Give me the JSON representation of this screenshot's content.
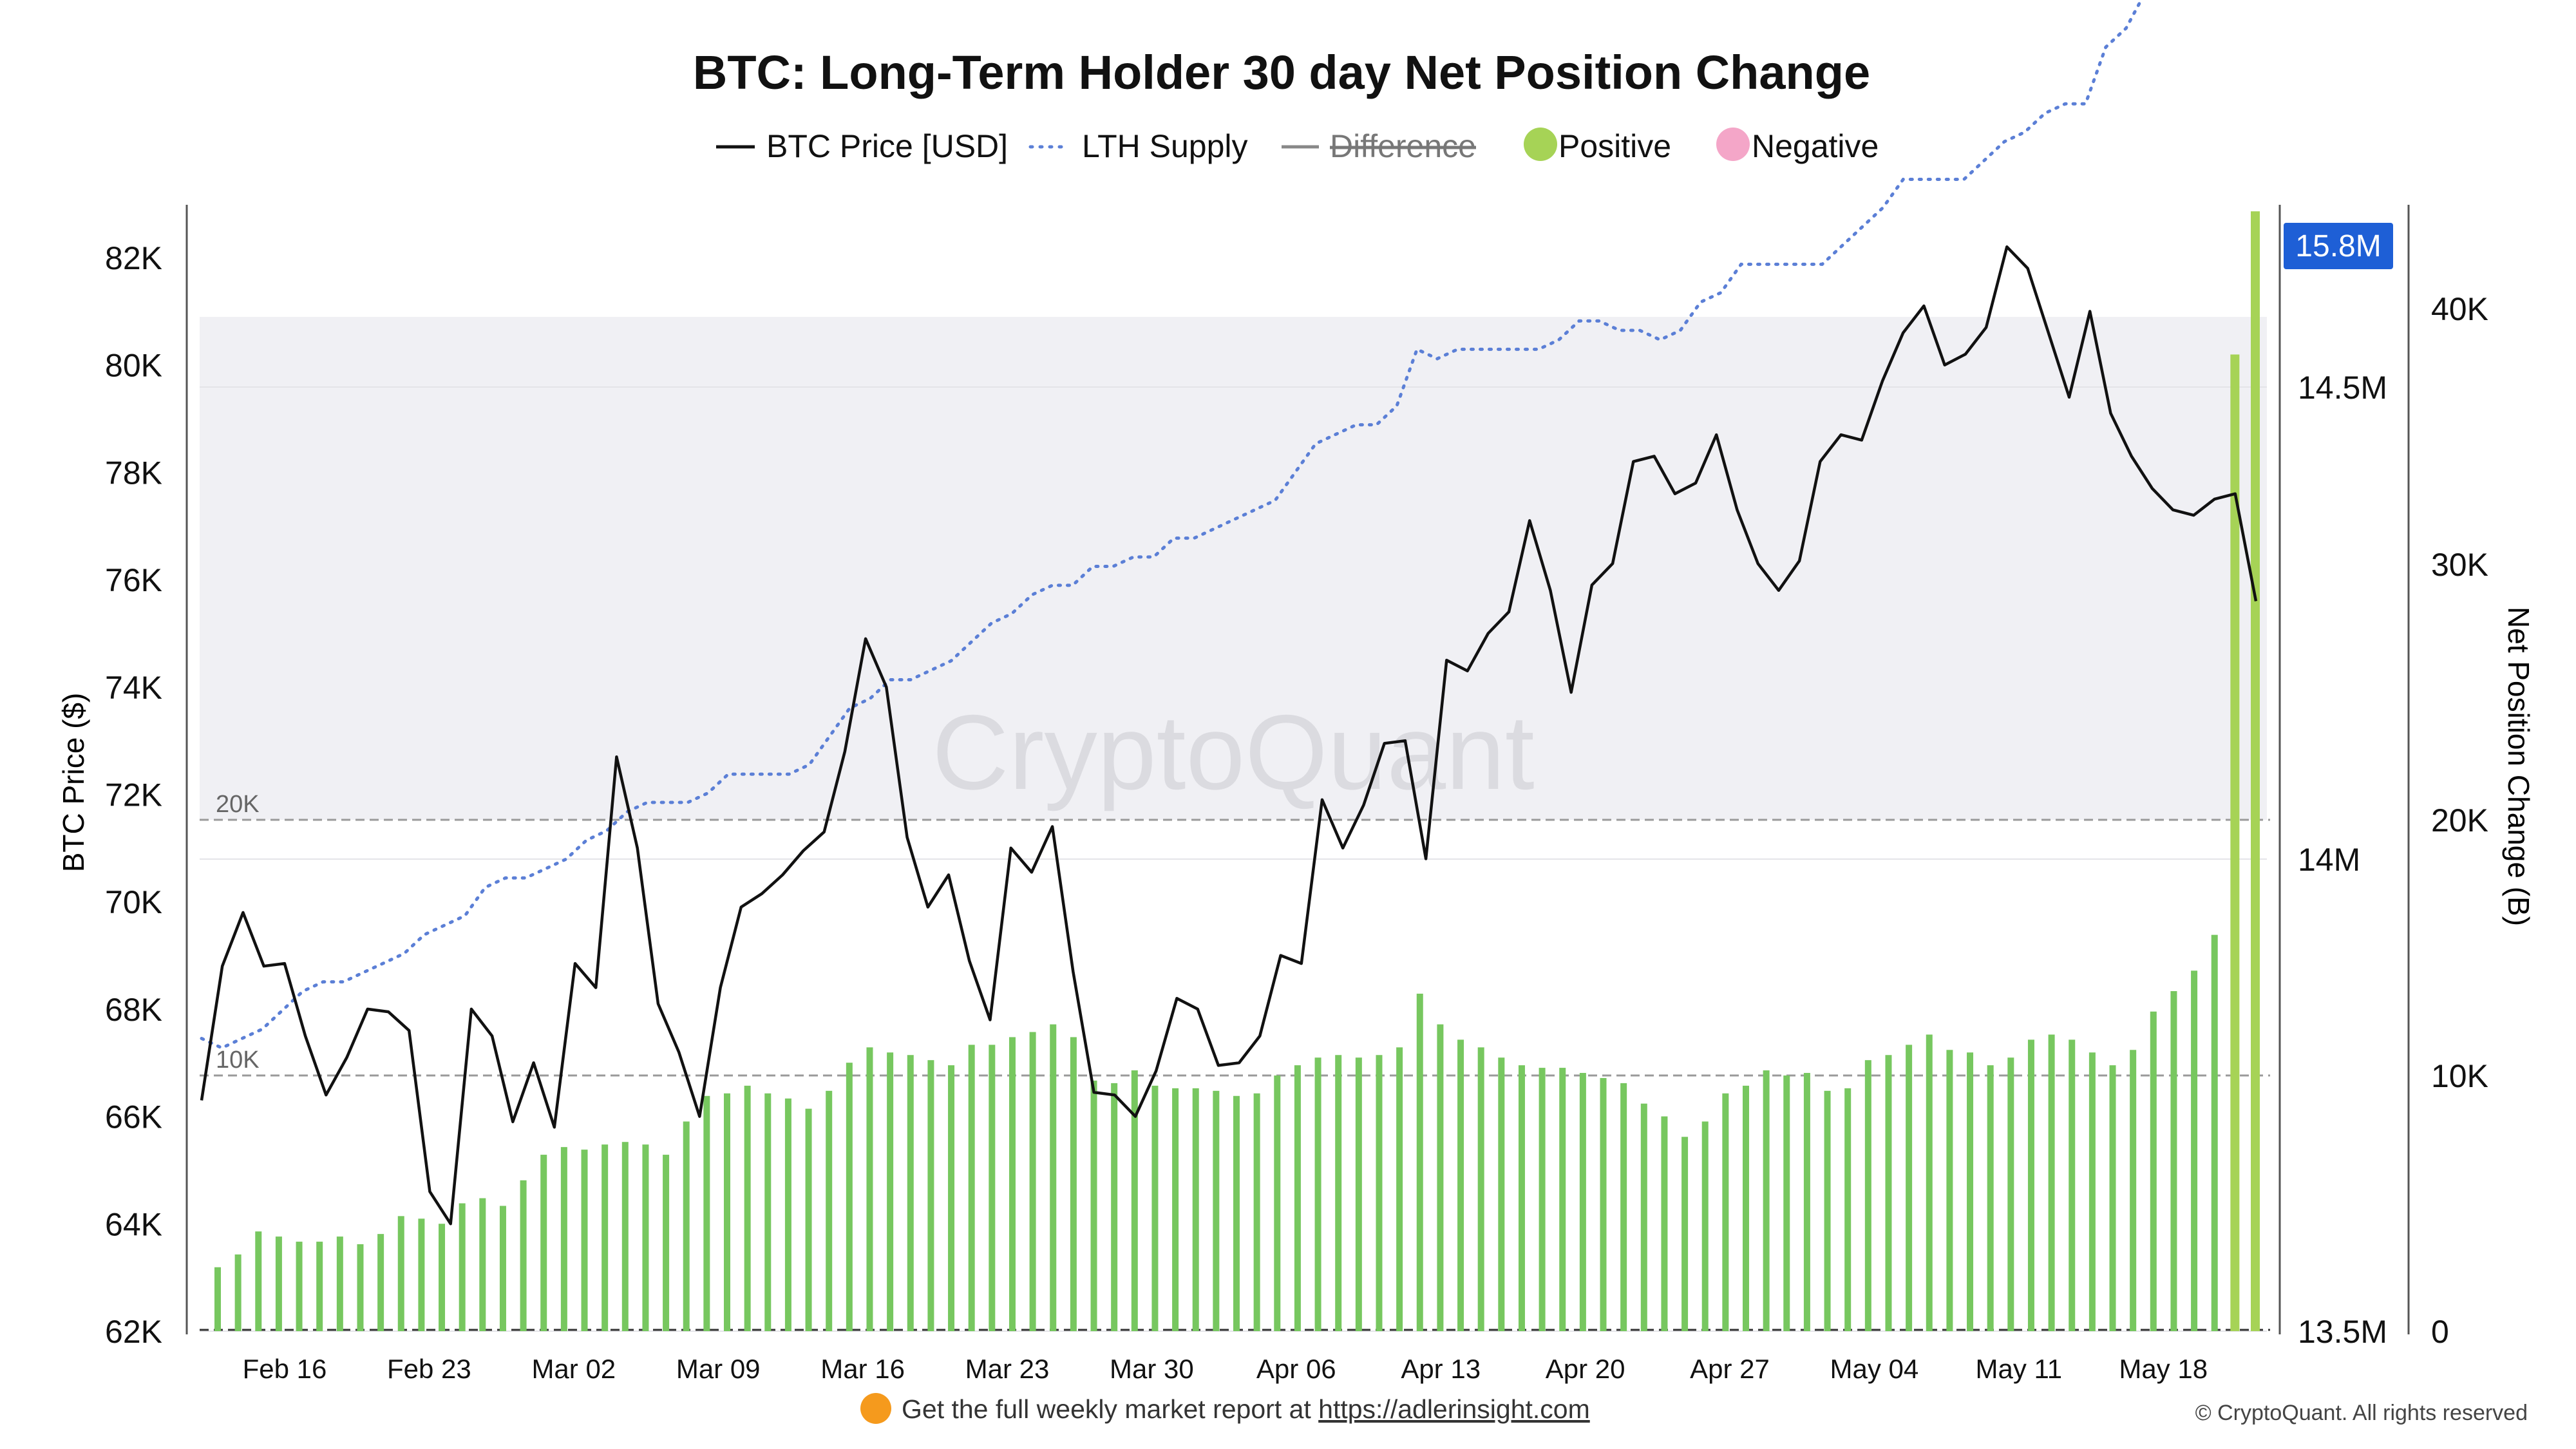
{
  "chart_data": {
    "type": "line",
    "title": "BTC: Long-Term Holder 30 day Net Position Change",
    "legend": [
      {
        "label": "BTC Price [USD]",
        "style": "solid",
        "color": "#111111"
      },
      {
        "label": "LTH Supply",
        "style": "dotted",
        "color": "#5b7fd6"
      },
      {
        "label": "Difference",
        "style": "strikethrough",
        "color": "#888888"
      },
      {
        "label": "Positive",
        "style": "dot",
        "color": "#a6d356"
      },
      {
        "label": "Negative",
        "style": "dot",
        "color": "#f4a6c8"
      }
    ],
    "legend_placement": "top-center",
    "x_tick_labels": [
      "Feb 16",
      "Feb 23",
      "Mar 02",
      "Mar 09",
      "Mar 16",
      "Mar 23",
      "Mar 30",
      "Apr 06",
      "Apr 13",
      "Apr 20",
      "Apr 27",
      "May 04",
      "May 11",
      "May 18"
    ],
    "y_left": {
      "label": "BTC Price ($)",
      "ticks": [
        62000,
        64000,
        66000,
        68000,
        70000,
        72000,
        74000,
        76000,
        78000,
        80000,
        82000
      ],
      "tick_labels": [
        "62K",
        "64K",
        "66K",
        "68K",
        "70K",
        "72K",
        "74K",
        "76K",
        "78K",
        "80K",
        "82K"
      ]
    },
    "y_right_inner": {
      "label": "",
      "ticks": [
        13.5,
        14,
        14.5,
        15,
        15.5
      ],
      "tick_labels": [
        "13.5M",
        "14M",
        "14.5M",
        "15M",
        "15.5M"
      ],
      "current_value_badge": "15.8M"
    },
    "y_right_outer": {
      "label": "Net Position Change (B)",
      "ticks": [
        0,
        10000,
        20000,
        30000,
        40000
      ],
      "tick_labels": [
        "0",
        "10K",
        "20K",
        "30K",
        "40K"
      ]
    },
    "reference_lines": [
      {
        "label": "10K",
        "value": 10000
      },
      {
        "label": "20K",
        "value": 20000
      }
    ],
    "series": [
      {
        "name": "BTC Price [USD]",
        "axis": "left",
        "values": [
          66300,
          68800,
          69800,
          68800,
          68850,
          67500,
          66400,
          67100,
          68000,
          67950,
          67600,
          64600,
          64000,
          68000,
          67500,
          65900,
          67000,
          65800,
          68850,
          68400,
          72700,
          71000,
          68100,
          67200,
          66000,
          68400,
          69900,
          70150,
          70500,
          70950,
          71300,
          72800,
          74900,
          74000,
          71200,
          69900,
          70500,
          68900,
          67800,
          71000,
          70550,
          71400,
          68700,
          66450,
          66400,
          66000,
          66850,
          68200,
          68000,
          66950,
          67000,
          67500,
          69000,
          68850,
          71900,
          71000,
          71800,
          72950,
          73000,
          70800,
          74500,
          74300,
          75000,
          75400,
          77100,
          75800,
          73900,
          75900,
          76300,
          78200,
          78300,
          77600,
          77800,
          78700,
          77300,
          76300,
          75800,
          76350,
          78200,
          78700,
          78600,
          79700,
          80600,
          81100,
          80000,
          80200,
          80700,
          82200,
          81800,
          80600,
          79400,
          81000,
          79100,
          78300,
          77700,
          77300,
          77200,
          77500,
          77600,
          75600
        ]
      },
      {
        "name": "LTH Supply",
        "axis": "right_inner",
        "values": [
          13.81,
          13.8,
          13.81,
          13.82,
          13.84,
          13.86,
          13.87,
          13.87,
          13.88,
          13.89,
          13.9,
          13.92,
          13.93,
          13.94,
          13.97,
          13.98,
          13.98,
          13.99,
          14.0,
          14.02,
          14.03,
          14.05,
          14.06,
          14.06,
          14.06,
          14.07,
          14.09,
          14.09,
          14.09,
          14.09,
          14.1,
          14.13,
          14.16,
          14.17,
          14.19,
          14.19,
          14.2,
          14.21,
          14.23,
          14.25,
          14.26,
          14.28,
          14.29,
          14.29,
          14.31,
          14.31,
          14.32,
          14.32,
          14.34,
          14.34,
          14.35,
          14.36,
          14.37,
          14.38,
          14.41,
          14.44,
          14.45,
          14.46,
          14.46,
          14.48,
          14.54,
          14.53,
          14.54,
          14.54,
          14.54,
          14.54,
          14.54,
          14.55,
          14.57,
          14.57,
          14.56,
          14.56,
          14.55,
          14.56,
          14.59,
          14.6,
          14.63,
          14.63,
          14.63,
          14.63,
          14.63,
          14.65,
          14.67,
          14.69,
          14.72,
          14.72,
          14.72,
          14.72,
          14.74,
          14.76,
          14.77,
          14.79,
          14.8,
          14.8,
          14.86,
          14.88,
          14.92,
          14.92,
          15.0,
          15.65,
          15.68,
          15.8
        ]
      },
      {
        "name": "Net Position Change",
        "axis": "right_outer",
        "type": "bar",
        "values": [
          2500,
          3000,
          3900,
          3700,
          3500,
          3500,
          3700,
          3400,
          3800,
          4500,
          4400,
          4200,
          5000,
          5200,
          4900,
          5900,
          6900,
          7200,
          7100,
          7300,
          7400,
          7300,
          6900,
          8200,
          9200,
          9300,
          9600,
          9300,
          9100,
          8700,
          9400,
          10500,
          11100,
          10900,
          10800,
          10600,
          10400,
          11200,
          11200,
          11500,
          11700,
          12000,
          11500,
          9800,
          9700,
          10200,
          9600,
          9500,
          9500,
          9400,
          9200,
          9300,
          10000,
          10400,
          10700,
          10800,
          10700,
          10800,
          11100,
          13200,
          12000,
          11400,
          11100,
          10700,
          10400,
          10300,
          10300,
          10100,
          9900,
          9700,
          8900,
          8400,
          7600,
          8200,
          9300,
          9600,
          10200,
          10000,
          10100,
          9400,
          9500,
          10600,
          10800,
          11200,
          11600,
          11000,
          10900,
          10400,
          10700,
          11400,
          11600,
          11400,
          10900,
          10400,
          11000,
          12500,
          13300,
          14100,
          15500,
          38200,
          43800
        ]
      }
    ]
  },
  "watermark": "CryptoQuant",
  "footer": {
    "prefix": "Get the full weekly market report at ",
    "link": "https://adlerinsight.com",
    "copyright": "© CryptoQuant. All rights reserved"
  },
  "colors": {
    "price": "#111111",
    "supply": "#5b7fd6",
    "bar": "#77c75f",
    "bar_highlight": "#a6d356",
    "badge": "#1e5fd6",
    "shade": "#f0f0f4"
  }
}
